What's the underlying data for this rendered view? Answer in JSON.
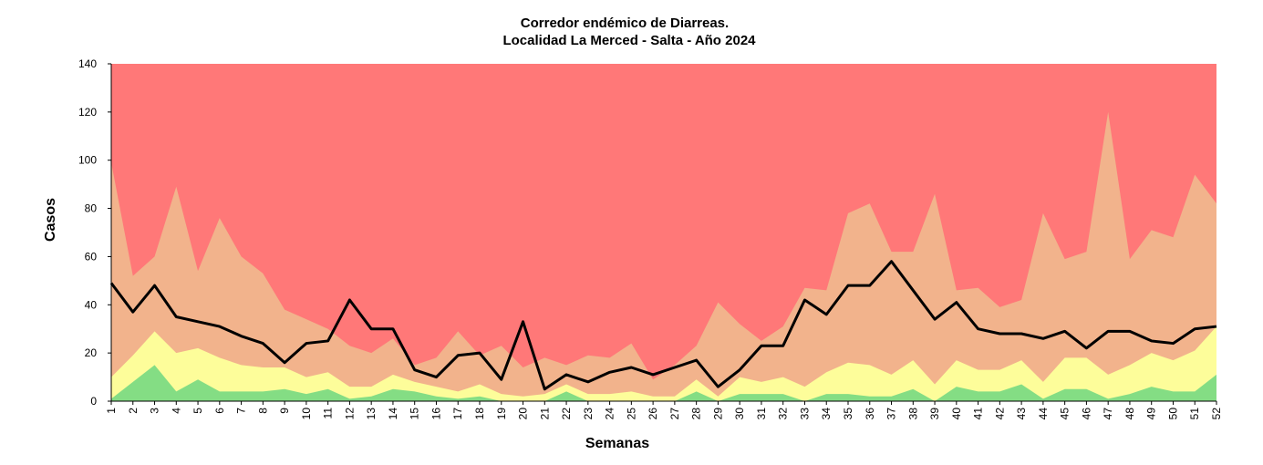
{
  "chart_data": {
    "type": "area",
    "title_line1": "Corredor endémico de Diarreas.",
    "title_line2": "Localidad La Merced - Salta - Año 2024",
    "xlabel": "Semanas",
    "ylabel": "Casos",
    "ylim": [
      0,
      140
    ],
    "yticks": [
      0,
      20,
      40,
      60,
      80,
      100,
      120,
      140
    ],
    "categories": [
      "1",
      "2",
      "3",
      "4",
      "5",
      "6",
      "7",
      "8",
      "9",
      "10",
      "11",
      "12",
      "13",
      "14",
      "15",
      "16",
      "17",
      "18",
      "19",
      "20",
      "21",
      "22",
      "23",
      "24",
      "25",
      "26",
      "27",
      "28",
      "29",
      "30",
      "31",
      "32",
      "33",
      "34",
      "35",
      "36",
      "37",
      "38",
      "39",
      "40",
      "41",
      "42",
      "43",
      "44",
      "45",
      "46",
      "47",
      "48",
      "49",
      "50",
      "51",
      "52"
    ],
    "bands": [
      {
        "color": "#84dd84",
        "values": [
          1,
          8,
          15,
          4,
          9,
          4,
          4,
          4,
          5,
          3,
          5,
          1,
          2,
          5,
          4,
          2,
          1,
          2,
          0,
          0,
          0,
          4,
          0,
          0,
          0,
          0,
          0,
          4,
          0,
          3,
          3,
          3,
          0,
          3,
          3,
          2,
          2,
          5,
          0,
          6,
          4,
          4,
          7,
          1,
          5,
          5,
          1,
          3,
          6,
          4,
          4,
          11
        ]
      },
      {
        "color": "#fdfd9a",
        "values": [
          10,
          19,
          29,
          20,
          22,
          18,
          15,
          14,
          14,
          10,
          12,
          6,
          6,
          11,
          8,
          6,
          4,
          7,
          3,
          2,
          3,
          7,
          3,
          3,
          4,
          2,
          2,
          9,
          2,
          10,
          8,
          10,
          6,
          12,
          16,
          15,
          11,
          17,
          7,
          17,
          13,
          13,
          17,
          8,
          18,
          18,
          11,
          15,
          20,
          17,
          21,
          31
        ]
      },
      {
        "color": "#f2b38c",
        "values": [
          99,
          52,
          60,
          89,
          54,
          76,
          60,
          53,
          38,
          34,
          30,
          23,
          20,
          26,
          15,
          18,
          29,
          19,
          23,
          14,
          18,
          15,
          19,
          18,
          24,
          9,
          15,
          23,
          41,
          32,
          25,
          31,
          47,
          46,
          78,
          82,
          62,
          62,
          86,
          46,
          47,
          39,
          42,
          78,
          59,
          62,
          120,
          59,
          71,
          68,
          94,
          82
        ]
      },
      {
        "color": "#ff7878",
        "values": [
          140,
          140,
          140,
          140,
          140,
          140,
          140,
          140,
          140,
          140,
          140,
          140,
          140,
          140,
          140,
          140,
          140,
          140,
          140,
          140,
          140,
          140,
          140,
          140,
          140,
          140,
          140,
          140,
          140,
          140,
          140,
          140,
          140,
          140,
          140,
          140,
          140,
          140,
          140,
          140,
          140,
          140,
          140,
          140,
          140,
          140,
          140,
          140,
          140,
          140,
          140,
          140
        ]
      }
    ],
    "series": [
      {
        "color": "#000000",
        "values": [
          49,
          37,
          48,
          35,
          33,
          31,
          27,
          24,
          16,
          24,
          25,
          42,
          30,
          30,
          13,
          10,
          19,
          20,
          9,
          33,
          5,
          11,
          8,
          12,
          14,
          11,
          14,
          17,
          6,
          13,
          23,
          23,
          42,
          36,
          48,
          48,
          58,
          46,
          34,
          41,
          30,
          28,
          28,
          26,
          29,
          22,
          29,
          29,
          25,
          24,
          30,
          31
        ]
      }
    ]
  }
}
